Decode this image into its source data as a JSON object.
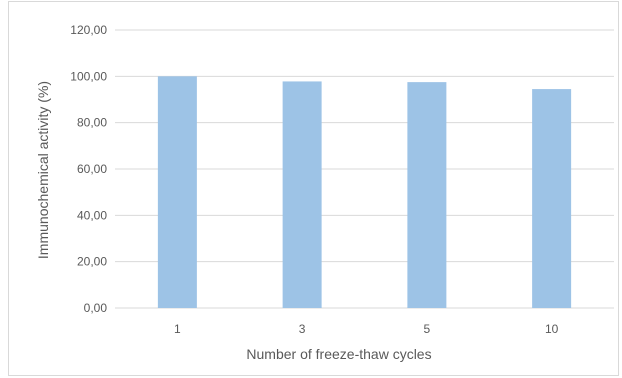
{
  "chart_data": {
    "type": "bar",
    "title": "",
    "xlabel": "Number of freeze-thaw cycles",
    "ylabel": "Immunochemical activity (%)",
    "categories": [
      "1",
      "3",
      "5",
      "10"
    ],
    "values": [
      100.0,
      97.8,
      97.5,
      94.5
    ],
    "ylim": [
      0,
      120
    ],
    "yticks": [
      "0,00",
      "20,00",
      "40,00",
      "60,00",
      "80,00",
      "100,00",
      "120,00"
    ],
    "grid": true,
    "legend": "none",
    "bar_color": "#9dc3e6",
    "grid_color": "#d9d9d9"
  }
}
